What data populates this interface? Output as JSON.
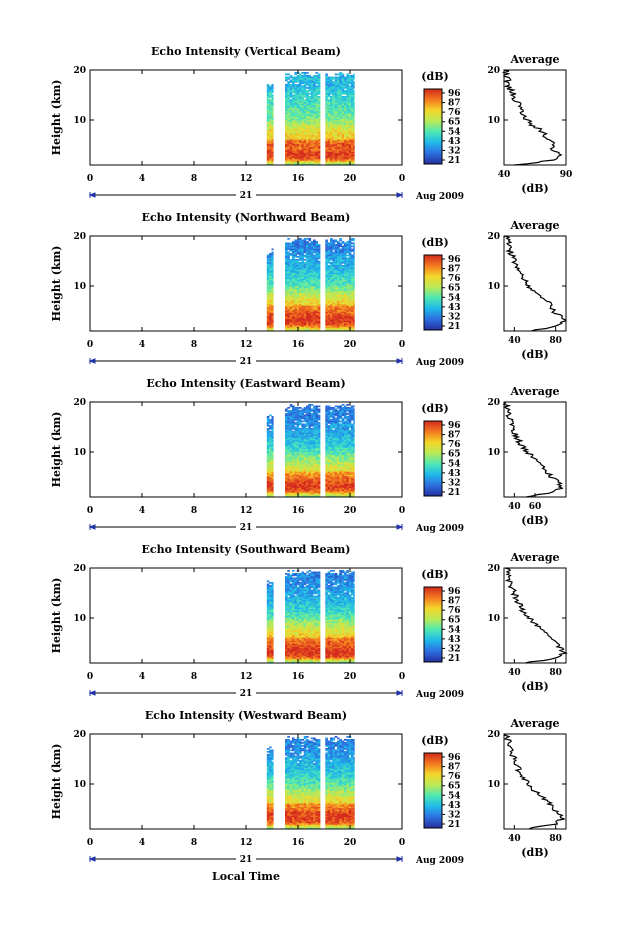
{
  "figure": {
    "xlabel": "Local Time",
    "date_label": "Aug 2009",
    "day_label": "21"
  },
  "colorbar": {
    "unit": "(dB)",
    "ticks": [
      "96",
      "87",
      "76",
      "65",
      "54",
      "43",
      "32",
      "21"
    ],
    "stops": [
      "#d42a1e",
      "#f47a1f",
      "#f3d82a",
      "#b9ea58",
      "#4de8b4",
      "#1fb8ea",
      "#2d6ee0",
      "#26309e"
    ]
  },
  "chart_data": [
    {
      "type": "heatmap",
      "title": "Echo Intensity (Vertical Beam)",
      "ylabel": "Height (km)",
      "x_ticks": [
        "0",
        "4",
        "8",
        "12",
        "16",
        "20",
        "0"
      ],
      "xlim": [
        0,
        24
      ],
      "y_ticks": [
        "20",
        "10"
      ],
      "ylim": [
        1,
        20
      ],
      "data_blocks_local_time": [
        [
          13.6,
          14.1
        ],
        [
          15.0,
          17.7
        ],
        [
          18.1,
          20.3
        ]
      ],
      "zlim_db": [
        21,
        96
      ],
      "profile": {
        "title": "Average",
        "xlabel": "(dB)",
        "x_ticks": [
          "40",
          "90"
        ],
        "xlim": [
          40,
          90
        ],
        "y_ticks": [
          "20",
          "10"
        ],
        "ylim": [
          1,
          20
        ],
        "height_km": [
          1,
          2,
          3,
          4,
          5,
          6,
          7,
          8,
          9,
          10,
          11,
          12,
          13,
          14,
          15,
          16,
          17,
          18,
          19,
          20
        ],
        "value_db": [
          50,
          80,
          88,
          80,
          82,
          75,
          74,
          70,
          63,
          58,
          55,
          54,
          52,
          50,
          48,
          45,
          42,
          44,
          41,
          42
        ]
      }
    },
    {
      "type": "heatmap",
      "title": "Echo Intensity (Northward Beam)",
      "ylabel": "Height (km)",
      "x_ticks": [
        "0",
        "4",
        "8",
        "12",
        "16",
        "20",
        "0"
      ],
      "xlim": [
        0,
        24
      ],
      "y_ticks": [
        "20",
        "10"
      ],
      "ylim": [
        1,
        20
      ],
      "data_blocks_local_time": [
        [
          13.6,
          14.1
        ],
        [
          15.0,
          17.7
        ],
        [
          18.1,
          20.3
        ]
      ],
      "zlim_db": [
        21,
        96
      ],
      "profile": {
        "title": "Average",
        "xlabel": "(dB)",
        "x_ticks": [
          "40",
          "80"
        ],
        "xlim": [
          30,
          90
        ],
        "y_ticks": [
          "20",
          "10"
        ],
        "ylim": [
          1,
          20
        ],
        "height_km": [
          1,
          2,
          3,
          4,
          5,
          6,
          7,
          8,
          9,
          10,
          11,
          12,
          13,
          14,
          15,
          16,
          17,
          18,
          19,
          20
        ],
        "value_db": [
          55,
          82,
          88,
          84,
          78,
          76,
          72,
          66,
          60,
          54,
          50,
          48,
          45,
          42,
          40,
          38,
          36,
          35,
          34,
          33
        ]
      }
    },
    {
      "type": "heatmap",
      "title": "Echo Intensity (Eastward Beam)",
      "ylabel": "Height (km)",
      "x_ticks": [
        "0",
        "4",
        "8",
        "12",
        "16",
        "20",
        "0"
      ],
      "xlim": [
        0,
        24
      ],
      "y_ticks": [
        "20",
        "10"
      ],
      "ylim": [
        1,
        20
      ],
      "data_blocks_local_time": [
        [
          13.6,
          14.1
        ],
        [
          15.0,
          17.7
        ],
        [
          18.1,
          20.3
        ]
      ],
      "zlim_db": [
        21,
        96
      ],
      "profile": {
        "title": "Average",
        "xlabel": "(dB)",
        "x_ticks": [
          "40",
          "60"
        ],
        "xlim": [
          30,
          90
        ],
        "y_ticks": [
          "20",
          "10"
        ],
        "ylim": [
          1,
          20
        ],
        "height_km": [
          1,
          2,
          3,
          4,
          5,
          6,
          7,
          8,
          9,
          10,
          11,
          12,
          13,
          14,
          15,
          16,
          17,
          18,
          19,
          20
        ],
        "value_db": [
          52,
          80,
          86,
          82,
          76,
          72,
          68,
          62,
          58,
          52,
          48,
          45,
          42,
          40,
          38,
          36,
          35,
          34,
          33,
          33
        ]
      }
    },
    {
      "type": "heatmap",
      "title": "Echo Intensity (Southward Beam)",
      "ylabel": "Height (km)",
      "x_ticks": [
        "0",
        "4",
        "8",
        "12",
        "16",
        "20",
        "0"
      ],
      "xlim": [
        0,
        24
      ],
      "y_ticks": [
        "20",
        "10"
      ],
      "ylim": [
        1,
        20
      ],
      "data_blocks_local_time": [
        [
          13.6,
          14.1
        ],
        [
          15.0,
          17.7
        ],
        [
          18.1,
          20.3
        ]
      ],
      "zlim_db": [
        21,
        96
      ],
      "profile": {
        "title": "Average",
        "xlabel": "(dB)",
        "x_ticks": [
          "40",
          "80"
        ],
        "xlim": [
          30,
          90
        ],
        "y_ticks": [
          "20",
          "10"
        ],
        "ylim": [
          1,
          20
        ],
        "height_km": [
          1,
          2,
          3,
          4,
          5,
          6,
          7,
          8,
          9,
          10,
          11,
          12,
          13,
          14,
          15,
          16,
          17,
          18,
          19,
          20
        ],
        "value_db": [
          50,
          82,
          88,
          84,
          80,
          76,
          72,
          66,
          60,
          55,
          50,
          47,
          44,
          42,
          40,
          38,
          36,
          35,
          34,
          33
        ]
      }
    },
    {
      "type": "heatmap",
      "title": "Echo Intensity (Westward Beam)",
      "ylabel": "Height (km)",
      "x_ticks": [
        "0",
        "4",
        "8",
        "12",
        "16",
        "20",
        "0"
      ],
      "xlim": [
        0,
        24
      ],
      "y_ticks": [
        "20",
        "10"
      ],
      "ylim": [
        1,
        20
      ],
      "data_blocks_local_time": [
        [
          13.6,
          14.1
        ],
        [
          15.0,
          17.7
        ],
        [
          18.1,
          20.3
        ]
      ],
      "zlim_db": [
        21,
        96
      ],
      "profile": {
        "title": "Average",
        "xlabel": "(dB)",
        "x_ticks": [
          "40",
          "80"
        ],
        "xlim": [
          30,
          90
        ],
        "y_ticks": [
          "20",
          "10"
        ],
        "ylim": [
          1,
          20
        ],
        "height_km": [
          1,
          2,
          3,
          4,
          5,
          6,
          7,
          8,
          9,
          10,
          11,
          12,
          13,
          14,
          15,
          16,
          17,
          18,
          19,
          20
        ],
        "value_db": [
          52,
          80,
          86,
          84,
          78,
          74,
          70,
          64,
          58,
          54,
          50,
          47,
          44,
          42,
          40,
          38,
          36,
          35,
          34,
          33
        ]
      }
    }
  ]
}
